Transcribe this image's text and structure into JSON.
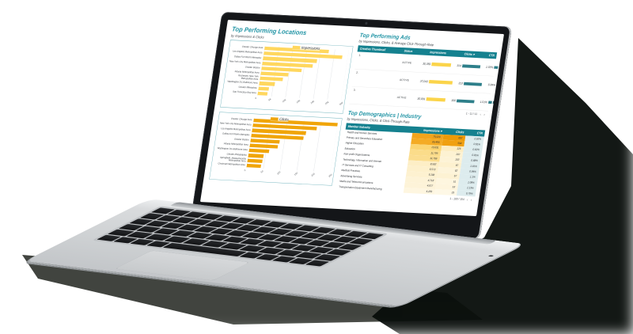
{
  "colors": {
    "accent_teal": "#1f93a4",
    "header_teal": "#15818f",
    "impressions_yellow": "#ffd75e",
    "clicks_orange": "#f0a50a",
    "table_bar_yellow": "#fbd44a",
    "table_bar_teal": "#2e7f8a",
    "ctr_cell_bg": "#ddecee"
  },
  "locations": {
    "title": "Top Performing Locations",
    "subtitle": "by Impressions & Clicks"
  },
  "ads": {
    "title": "Top Performing Ads",
    "subtitle": "by Impressions, Clicks, & Average Click-Through-Rate",
    "columns": [
      "Creative Thumbnail",
      "Status",
      "Impressions",
      "Clicks",
      "CTR"
    ],
    "sort_column": "Clicks",
    "sort_icon": "▾",
    "rows": [
      {
        "num": "1.",
        "status": "ACTIVE",
        "impressions": "30,359",
        "impressions_value": 30359,
        "clicks": "314",
        "clicks_value": 314,
        "ctr": "1.03%",
        "ctr_value": 1.03
      },
      {
        "num": "2.",
        "status": "ACTIVE",
        "impressions": "37,043",
        "impressions_value": 37043,
        "clicks": "313",
        "clicks_value": 313,
        "ctr": "0.84%",
        "ctr_value": 0.84
      },
      {
        "num": "3.",
        "status": "ACTIVE",
        "impressions": "30,081",
        "impressions_value": 30081,
        "clicks": "306",
        "clicks_value": 306,
        "ctr": "1.01%",
        "ctr_value": 1.01
      }
    ],
    "pagination": "1 - 11 / 11",
    "chevron_left": "‹",
    "chevron_right": "›"
  },
  "demographics": {
    "title": "Top Demographics | Industry",
    "subtitle": "by Impressions, Clicks, & Click-Through-Rate",
    "columns": [
      "Member Industry",
      "Impressions",
      "Clicks",
      "CTR"
    ],
    "sort_column": "Impressions",
    "sort_icon": "▾",
    "rows": [
      {
        "industry": "Health and Human Services",
        "impressions": "75,010",
        "clicks": "697",
        "ctr": "0.93%",
        "imp_bg": "#f2a41c",
        "clk_bg": "#ee9a06"
      },
      {
        "industry": "Primary and Secondary Education",
        "impressions": "65,490",
        "clicks": "594",
        "ctr": "0.91%",
        "imp_bg": "#f4ab24",
        "clk_bg": "#f0a011"
      },
      {
        "industry": "Higher Education",
        "impressions": "13,631",
        "clicks": "126",
        "ctr": "0.92%",
        "imp_bg": "#fbd572",
        "clk_bg": "#fdedc2"
      },
      {
        "industry": "Education",
        "impressions": "11,795",
        "clicks": "107",
        "ctr": "0.91%",
        "imp_bg": "#fbdc8a",
        "clk_bg": "#fdf2d2"
      },
      {
        "industry": "Non-profit Organizations",
        "impressions": "11,769",
        "clicks": "103",
        "ctr": "0.88%",
        "imp_bg": "#fbdd8f",
        "clk_bg": "#fdf3d6"
      },
      {
        "industry": "Technology, Information and Internet",
        "impressions": "8,592",
        "clicks": "87",
        "ctr": "1.01%",
        "imp_bg": "#fdeec6",
        "clk_bg": "#fdf1cf"
      },
      {
        "industry": "IT Services and IT Consulting",
        "impressions": "6,573",
        "clicks": "62",
        "ctr": "0.94%",
        "imp_bg": "#fdf0cc",
        "clk_bg": "#fdf4da"
      },
      {
        "industry": "Medical Practices",
        "impressions": "6,106",
        "clicks": "67",
        "ctr": "1.1%",
        "imp_bg": "#fdf1d0",
        "clk_bg": "#fdf2d3"
      },
      {
        "industry": "Advertising Services",
        "impressions": "4,718",
        "clicks": "51",
        "ctr": "1.08%",
        "imp_bg": "#fdf3d7",
        "clk_bg": "#fef6df"
      },
      {
        "industry": "Media and Telecommunications",
        "impressions": "4,677",
        "clicks": "53",
        "ctr": "1.13%",
        "imp_bg": "#fdf3d8",
        "clk_bg": "#fef5dd"
      },
      {
        "industry": "Transportation Equipment Manufacturing",
        "impressions": "4,169",
        "clicks": "33",
        "ctr": "0.79%",
        "imp_bg": "#fef6e0",
        "clk_bg": "#fef8e6"
      }
    ],
    "pagination": "1 - 100 / 154",
    "chevron_left": "‹",
    "chevron_right": "›"
  },
  "chart_data": [
    {
      "type": "bar",
      "orientation": "horizontal",
      "title": "Top Performing Locations",
      "legend": "Impressions",
      "legend_position": "top-center",
      "grid": true,
      "categories": [
        "Greater Chicago Area",
        "Los Angeles Metropolitan Area",
        "Dallas-Fort Worth Metroplex",
        "New York City Metropolitan Area",
        "Greater Boston",
        "Atlanta Metropolitan Area",
        "Rochester, New York Metropolitan Area",
        "Washington DC-Baltimore Area",
        "Greater Milwaukee",
        "San Francisco Bay Area"
      ],
      "values": [
        23000,
        28000,
        19300,
        18000,
        14300,
        9900,
        8100,
        5600,
        3700,
        3400
      ],
      "xlabel": "",
      "ylabel": "",
      "xlim": [
        0,
        30000
      ],
      "xticks": [
        "0",
        "5K",
        "10K",
        "15K",
        "20K",
        "25K",
        "30K"
      ],
      "bar_color": "#ffd75e"
    },
    {
      "type": "bar",
      "orientation": "horizontal",
      "title": "Top Performing Locations",
      "legend": "Clicks",
      "legend_position": "top-center",
      "grid": true,
      "categories": [
        "Greater Chicago Area",
        "New York City Metropolitan Area",
        "Los Angeles Metropolitan Area",
        "Dallas-Fort Worth Metroplex",
        "Greater Boston",
        "Atlanta Metropolitan Area",
        "Washington DC-Baltimore Area",
        "Greater Philadelphia",
        "Springfield, Massachusetts Metropolitan Area",
        "Cincinnati Metropolitan Area"
      ],
      "values": [
        250,
        190,
        160,
        155,
        86,
        83,
        60,
        45,
        44,
        42
      ],
      "xlabel": "",
      "ylabel": "",
      "xlim": [
        0,
        250
      ],
      "xticks": [
        "0",
        "50",
        "100",
        "150",
        "200",
        "250"
      ],
      "bar_color": "#f0a50a"
    }
  ]
}
